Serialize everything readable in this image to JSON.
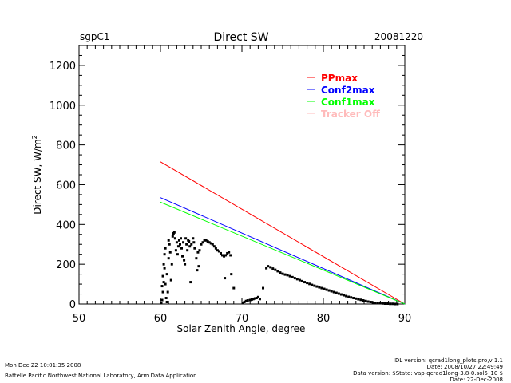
{
  "header": {
    "site": "sgpC1",
    "title": "Direct SW",
    "date": "20081220"
  },
  "footer": {
    "left_line1": "Mon Dec 22 10:01:35 2008",
    "left_line2": "Battelle Pacific Northwest National Laboratory, Arm Data Application",
    "right_line1": "IDL version: qcrad1long_plots.pro,v 1.1",
    "right_line2": "Date: 2008/10/27 22:49:49",
    "right_line3": "Data version: $State: vap-qcrad1long-3.8-0.sol5_10 $",
    "right_line4": "Date: 22-Dec-2008"
  },
  "chart_data": {
    "type": "scatter",
    "title": "Direct SW",
    "xlabel": "Solar Zenith Angle, degree",
    "ylabel": "Direct SW, W/m",
    "ylabel_superscript": "2",
    "xlim": [
      50,
      90
    ],
    "ylim": [
      0,
      1300
    ],
    "xticks": [
      50,
      60,
      70,
      80,
      90
    ],
    "xtick_labels": [
      "50",
      "60",
      "70",
      "80",
      "90"
    ],
    "yticks": [
      0,
      200,
      400,
      600,
      800,
      1000,
      1200
    ],
    "ytick_labels": [
      "0",
      "200",
      "400",
      "600",
      "800",
      "1000",
      "1200"
    ],
    "legend_position": "top-right",
    "legend": [
      {
        "name": "PPmax",
        "color": "#ff0000"
      },
      {
        "name": "Conf2max",
        "color": "#0000ff"
      },
      {
        "name": "Conf1max",
        "color": "#00ff00"
      },
      {
        "name": "Tracker Off",
        "color": "#ffbbbb"
      }
    ],
    "lines": [
      {
        "name": "PPmax",
        "color": "#ff0000",
        "x": [
          60,
          90
        ],
        "y": [
          715,
          0
        ]
      },
      {
        "name": "Conf2max",
        "color": "#0000ff",
        "x": [
          60,
          90
        ],
        "y": [
          535,
          0
        ]
      },
      {
        "name": "Conf1max",
        "color": "#00ff00",
        "x": [
          60,
          90
        ],
        "y": [
          512,
          0
        ]
      }
    ],
    "series": [
      {
        "name": "Direct SW",
        "color": "#000000",
        "points": [
          [
            60.1,
            5
          ],
          [
            60.2,
            20
          ],
          [
            60.3,
            60
          ],
          [
            60.2,
            90
          ],
          [
            60.4,
            110
          ],
          [
            60.3,
            140
          ],
          [
            60.5,
            180
          ],
          [
            60.4,
            200
          ],
          [
            60.6,
            100
          ],
          [
            60.7,
            30
          ],
          [
            60.8,
            10
          ],
          [
            60.5,
            250
          ],
          [
            60.6,
            280
          ],
          [
            60.8,
            150
          ],
          [
            60.9,
            60
          ],
          [
            61.0,
            230
          ],
          [
            61.1,
            300
          ],
          [
            61.2,
            260
          ],
          [
            61.0,
            320
          ],
          [
            61.3,
            120
          ],
          [
            61.4,
            200
          ],
          [
            61.5,
            340
          ],
          [
            61.6,
            355
          ],
          [
            61.7,
            360
          ],
          [
            61.8,
            330
          ],
          [
            61.9,
            270
          ],
          [
            62.0,
            310
          ],
          [
            62.1,
            250
          ],
          [
            62.2,
            290
          ],
          [
            62.3,
            320
          ],
          [
            62.4,
            300
          ],
          [
            62.5,
            330
          ],
          [
            62.6,
            280
          ],
          [
            62.7,
            240
          ],
          [
            62.8,
            310
          ],
          [
            62.9,
            220
          ],
          [
            63.0,
            200
          ],
          [
            63.1,
            330
          ],
          [
            63.2,
            300
          ],
          [
            63.3,
            270
          ],
          [
            63.4,
            320
          ],
          [
            63.5,
            315
          ],
          [
            63.6,
            290
          ],
          [
            63.7,
            110
          ],
          [
            63.8,
            300
          ],
          [
            64.0,
            330
          ],
          [
            64.1,
            310
          ],
          [
            64.2,
            280
          ],
          [
            64.4,
            230
          ],
          [
            64.5,
            170
          ],
          [
            64.6,
            260
          ],
          [
            64.7,
            190
          ],
          [
            64.8,
            270
          ],
          [
            65.0,
            300
          ],
          [
            65.2,
            310
          ],
          [
            65.4,
            320
          ],
          [
            65.6,
            320
          ],
          [
            65.8,
            315
          ],
          [
            66.0,
            310
          ],
          [
            66.2,
            305
          ],
          [
            66.4,
            300
          ],
          [
            66.6,
            290
          ],
          [
            66.8,
            280
          ],
          [
            67.0,
            270
          ],
          [
            67.2,
            265
          ],
          [
            67.4,
            255
          ],
          [
            67.6,
            245
          ],
          [
            67.8,
            240
          ],
          [
            68.0,
            245
          ],
          [
            68.2,
            255
          ],
          [
            68.4,
            260
          ],
          [
            68.6,
            245
          ],
          [
            67.9,
            130
          ],
          [
            68.7,
            150
          ],
          [
            69.0,
            80
          ],
          [
            70.1,
            5
          ],
          [
            70.3,
            10
          ],
          [
            70.5,
            15
          ],
          [
            70.7,
            18
          ],
          [
            71.0,
            20
          ],
          [
            71.2,
            22
          ],
          [
            71.4,
            25
          ],
          [
            71.6,
            28
          ],
          [
            71.8,
            30
          ],
          [
            72.0,
            35
          ],
          [
            72.2,
            25
          ],
          [
            72.6,
            80
          ],
          [
            73.0,
            180
          ],
          [
            73.2,
            190
          ],
          [
            73.5,
            185
          ],
          [
            73.8,
            178
          ],
          [
            74.1,
            172
          ],
          [
            74.4,
            165
          ],
          [
            74.7,
            158
          ],
          [
            75.0,
            152
          ],
          [
            75.3,
            148
          ],
          [
            75.6,
            145
          ],
          [
            75.9,
            140
          ],
          [
            76.2,
            135
          ],
          [
            76.5,
            130
          ],
          [
            76.8,
            125
          ],
          [
            77.1,
            120
          ],
          [
            77.4,
            115
          ],
          [
            77.7,
            110
          ],
          [
            78.0,
            106
          ],
          [
            78.3,
            101
          ],
          [
            78.6,
            96
          ],
          [
            78.9,
            92
          ],
          [
            79.2,
            88
          ],
          [
            79.5,
            84
          ],
          [
            79.8,
            80
          ],
          [
            80.1,
            76
          ],
          [
            80.4,
            72
          ],
          [
            80.7,
            68
          ],
          [
            81.0,
            64
          ],
          [
            81.3,
            60
          ],
          [
            81.6,
            56
          ],
          [
            81.9,
            52
          ],
          [
            82.2,
            48
          ],
          [
            82.5,
            44
          ],
          [
            82.8,
            40
          ],
          [
            83.1,
            36
          ],
          [
            83.4,
            33
          ],
          [
            83.7,
            30
          ],
          [
            84.0,
            27
          ],
          [
            84.3,
            24
          ],
          [
            84.6,
            21
          ],
          [
            84.9,
            18
          ],
          [
            85.2,
            15
          ],
          [
            85.5,
            12
          ],
          [
            85.8,
            10
          ],
          [
            86.1,
            8
          ],
          [
            86.4,
            6
          ],
          [
            86.7,
            5
          ],
          [
            87.0,
            4
          ],
          [
            87.3,
            3
          ],
          [
            87.6,
            2
          ],
          [
            87.9,
            2
          ],
          [
            88.2,
            1
          ],
          [
            88.5,
            1
          ],
          [
            88.8,
            0
          ],
          [
            89.1,
            0
          ]
        ]
      }
    ]
  }
}
